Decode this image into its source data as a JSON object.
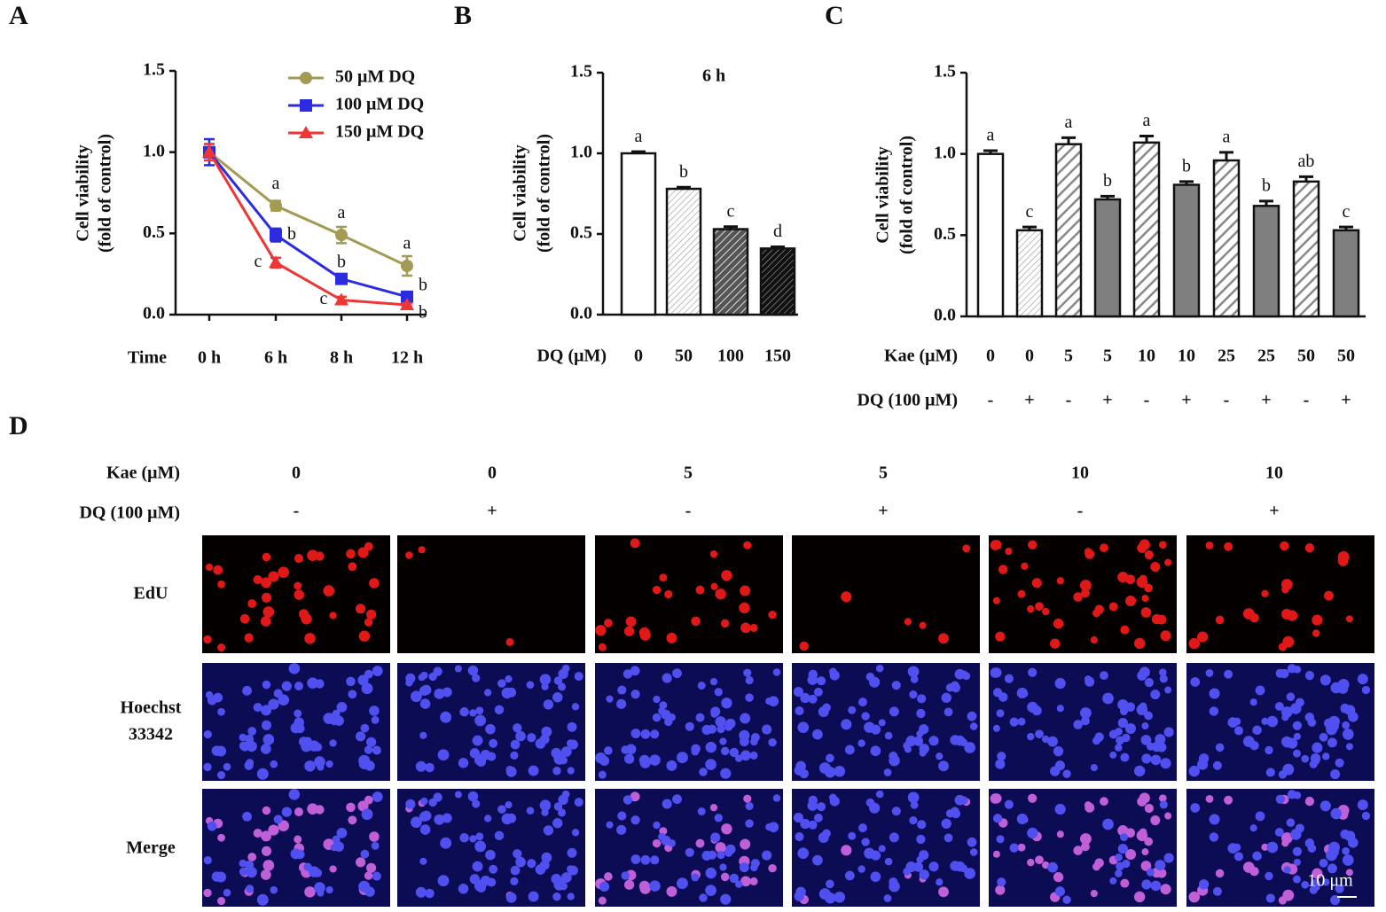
{
  "panels": [
    "A",
    "B",
    "C",
    "D"
  ],
  "chart_data": [
    {
      "type": "line",
      "xlabel": "Time",
      "ylabel": [
        "Cell viability",
        "(fold of control)"
      ],
      "categories": [
        "0 h",
        "6 h",
        "8 h",
        "12 h"
      ],
      "ylim": [
        0,
        1.5
      ],
      "yticks": [
        {
          "value": 0,
          "label": "0.0"
        },
        {
          "value": 0.5,
          "label": "0.5"
        },
        {
          "value": 1,
          "label": "1.0"
        },
        {
          "value": 1.5,
          "label": "1.5"
        }
      ],
      "legend": "top-right",
      "series": [
        {
          "name": "50 μM DQ",
          "color": "#a39b55",
          "marker": "circle",
          "values": [
            1.0,
            0.67,
            0.49,
            0.3
          ],
          "errors": [
            0.05,
            0.03,
            0.05,
            0.06
          ],
          "labels": [
            null,
            "a",
            "a",
            "a"
          ]
        },
        {
          "name": "100 μM DQ",
          "color": "#2b2be0",
          "marker": "square",
          "values": [
            1.0,
            0.49,
            0.22,
            0.11
          ],
          "errors": [
            0.08,
            0.04,
            0.02,
            0.02
          ],
          "labels": [
            null,
            "b",
            "b",
            "b"
          ]
        },
        {
          "name": "150 μM DQ",
          "color": "#f03535",
          "marker": "triangle",
          "values": [
            1.0,
            0.32,
            0.09,
            0.06
          ],
          "errors": [
            0.05,
            0.03,
            0.02,
            0.01
          ],
          "labels": [
            null,
            "c",
            "c",
            "b"
          ]
        }
      ]
    },
    {
      "type": "bar",
      "title": "6 h",
      "xlabel": "DQ (μM)",
      "ylabel": [
        "Cell viability",
        "(fold of control)"
      ],
      "categories": [
        "0",
        "50",
        "100",
        "150"
      ],
      "values": [
        1.0,
        0.78,
        0.53,
        0.41
      ],
      "errors": [
        0.01,
        0.01,
        0.015,
        0.01
      ],
      "labels": [
        "a",
        "b",
        "c",
        "d"
      ],
      "fills": [
        "white",
        "hatch-light",
        "hatch-mid",
        "hatch-dark"
      ],
      "ylim": [
        0,
        1.5
      ],
      "yticks": [
        {
          "value": 0,
          "label": "0.0"
        },
        {
          "value": 0.5,
          "label": "0.5"
        },
        {
          "value": 1,
          "label": "1.0"
        },
        {
          "value": 1.5,
          "label": "1.5"
        }
      ]
    },
    {
      "type": "bar",
      "xlabel": "Kae (μM)",
      "xlabel2": "DQ (100 μM)",
      "ylabel": [
        "Cell viability",
        "(fold of control)"
      ],
      "categories": [
        "0",
        "0",
        "5",
        "5",
        "10",
        "10",
        "25",
        "25",
        "50",
        "50"
      ],
      "categories2": [
        "-",
        "+",
        "-",
        "+",
        "-",
        "+",
        "-",
        "+",
        "-",
        "+"
      ],
      "values": [
        1.0,
        0.53,
        1.06,
        0.72,
        1.07,
        0.81,
        0.96,
        0.68,
        0.83,
        0.53
      ],
      "errors": [
        0.02,
        0.02,
        0.04,
        0.02,
        0.04,
        0.02,
        0.05,
        0.03,
        0.03,
        0.02
      ],
      "labels": [
        "a",
        "c",
        "a",
        "b",
        "a",
        "b",
        "a",
        "b",
        "ab",
        "c"
      ],
      "fills": [
        "white",
        "hatch-light",
        "hatch-stripe",
        "#7f7f7f",
        "hatch-stripe",
        "#7f7f7f",
        "hatch-stripe",
        "#7f7f7f",
        "hatch-stripe",
        "#7f7f7f"
      ],
      "ylim": [
        0,
        1.5
      ],
      "yticks": [
        {
          "value": 0,
          "label": "0.0"
        },
        {
          "value": 0.5,
          "label": "0.5"
        },
        {
          "value": 1,
          "label": "1.0"
        },
        {
          "value": 1.5,
          "label": "1.5"
        }
      ]
    }
  ],
  "panel_d": {
    "kae_label": "Kae (μM)",
    "kae": [
      "0",
      "0",
      "5",
      "5",
      "10",
      "10"
    ],
    "dq_label": "DQ (100 μM)",
    "dq": [
      "-",
      "+",
      "-",
      "+",
      "-",
      "+"
    ],
    "rows": [
      [
        "EdU"
      ],
      [
        "Hoechst",
        "33342"
      ],
      [
        "Merge"
      ]
    ],
    "scale_bar": "10 μm"
  }
}
